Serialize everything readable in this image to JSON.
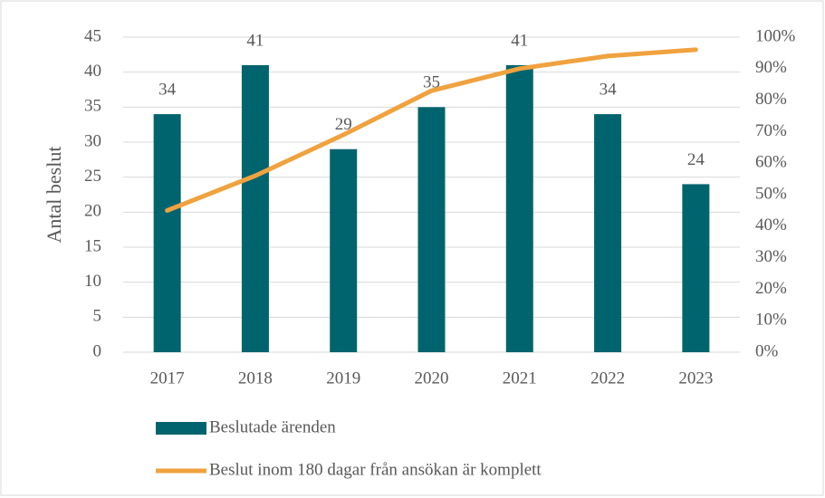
{
  "chart_data": {
    "type": "combo",
    "y_label": "Antal beslut",
    "categories": [
      "2017",
      "2018",
      "2019",
      "2020",
      "2021",
      "2022",
      "2023"
    ],
    "series": [
      {
        "name": "Beslutade ärenden",
        "type": "bar",
        "color": "#00646f",
        "values": [
          34,
          41,
          29,
          35,
          41,
          34,
          24
        ]
      },
      {
        "name": "Beslut inom 180 dagar från ansökan är komplett",
        "type": "line",
        "axis": "y2",
        "color": "#f0a23e",
        "values": [
          45,
          56,
          69,
          83,
          90,
          94,
          96
        ]
      }
    ],
    "ylim": [
      0,
      45
    ],
    "yticks": [
      0,
      5,
      10,
      15,
      20,
      25,
      30,
      35,
      40,
      45
    ],
    "y2lim": [
      0,
      100
    ],
    "y2ticks": [
      {
        "value": 0,
        "label": "0%"
      },
      {
        "value": 10,
        "label": "10%"
      },
      {
        "value": 20,
        "label": "20%"
      },
      {
        "value": 30,
        "label": "30%"
      },
      {
        "value": 40,
        "label": "40%"
      },
      {
        "value": 50,
        "label": "50%"
      },
      {
        "value": 60,
        "label": "60%"
      },
      {
        "value": 70,
        "label": "70%"
      },
      {
        "value": 80,
        "label": "80%"
      },
      {
        "value": 90,
        "label": "90%"
      },
      {
        "value": 100,
        "label": "100%"
      }
    ],
    "grid": true,
    "legend": "bottom"
  }
}
